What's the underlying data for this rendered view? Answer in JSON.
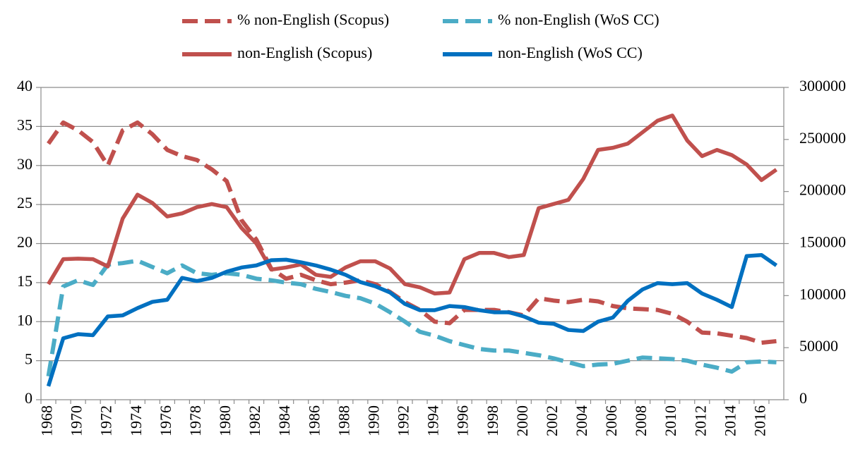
{
  "chart_data": {
    "type": "line",
    "categories": [
      "1968",
      null,
      "1970",
      null,
      "1972",
      null,
      "1974",
      null,
      "1976",
      null,
      "1978",
      null,
      "1980",
      null,
      "1982",
      null,
      "1984",
      null,
      "1986",
      null,
      "1988",
      null,
      "1990",
      null,
      "1992",
      null,
      "1994",
      null,
      "1996",
      null,
      "1998",
      null,
      "2000",
      null,
      "2002",
      null,
      "2004",
      null,
      "2006",
      null,
      "2008",
      null,
      "2010",
      null,
      "2012",
      null,
      "2014",
      null,
      "2016",
      null
    ],
    "series": [
      {
        "name": "% non-English (Scopus)",
        "color": "#c0504d",
        "style": "dashed",
        "values": [
          32.8,
          35.5,
          34.5,
          33,
          30,
          34.5,
          35.5,
          34,
          32,
          31.2,
          30.7,
          29.5,
          28,
          23,
          20.5,
          16.8,
          15.5,
          16,
          15.3,
          14.8,
          15,
          15.3,
          14.8,
          13.8,
          12.5,
          11.5,
          10,
          9.8,
          11.5,
          11.5,
          11.5,
          11.2,
          10.8,
          13,
          12.7,
          12.5,
          12.8,
          12.6,
          12,
          11.7,
          11.6,
          11.5,
          11,
          10,
          8.6,
          8.5,
          8.2,
          7.9,
          7.3,
          7.5
        ]
      },
      {
        "name": "% non-English (WoS CC)",
        "color": "#4bacc6",
        "style": "dashed",
        "values": [
          3,
          14.5,
          15.3,
          14.7,
          17.3,
          17.5,
          17.8,
          17,
          16.2,
          17.2,
          16.2,
          16,
          16.2,
          16,
          15.5,
          15.3,
          15,
          14.8,
          14.2,
          13.8,
          13.3,
          13,
          12.3,
          11.2,
          10,
          8.7,
          8.2,
          7.5,
          7,
          6.5,
          6.3,
          6.3,
          6,
          5.7,
          5.3,
          4.8,
          4.3,
          4.5,
          4.6,
          5,
          5.4,
          5.3,
          5.2,
          5,
          4.5,
          4.1,
          3.6,
          4.8,
          4.9,
          4.8
        ]
      },
      {
        "name": "non-English (Scopus)",
        "color": "#c0504d",
        "style": "solid",
        "axis": "y2",
        "values": [
          111000,
          135000,
          135500,
          135000,
          128000,
          174000,
          197000,
          189000,
          176000,
          179000,
          185000,
          188000,
          185000,
          165000,
          150000,
          125000,
          127000,
          130000,
          120000,
          118000,
          127000,
          133000,
          133000,
          126000,
          111000,
          108000,
          102000,
          103000,
          135000,
          141000,
          141000,
          137000,
          139000,
          184000,
          188000,
          192000,
          212000,
          240000,
          242000,
          246000,
          257000,
          268000,
          273000,
          249000,
          234000,
          240000,
          235000,
          226000,
          211000,
          221000
        ]
      },
      {
        "name": "non-English (WoS CC)",
        "color": "#0070c0",
        "style": "solid",
        "axis": "y2",
        "values": [
          13000,
          59000,
          63000,
          62000,
          80000,
          81000,
          88000,
          94000,
          96000,
          117000,
          114000,
          117000,
          123000,
          127000,
          129000,
          134000,
          134500,
          132000,
          129000,
          125000,
          120000,
          113000,
          109000,
          103000,
          92000,
          86000,
          86000,
          90000,
          89000,
          86000,
          84000,
          84000,
          80000,
          74000,
          73000,
          67000,
          66000,
          75000,
          79000,
          95000,
          106000,
          112000,
          111000,
          112000,
          102000,
          96000,
          89000,
          138000,
          139000,
          129000
        ]
      }
    ],
    "ylim": [
      0,
      40
    ],
    "yticks": [
      0,
      5,
      10,
      15,
      20,
      25,
      30,
      35,
      40
    ],
    "y2lim": [
      0,
      300000
    ],
    "y2ticks": [
      0,
      50000,
      100000,
      150000,
      200000,
      250000,
      300000
    ],
    "grid": true,
    "legend": "top"
  }
}
